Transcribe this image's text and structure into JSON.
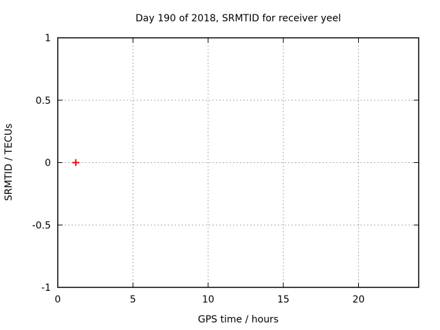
{
  "chart_data": {
    "type": "scatter",
    "title": "Day 190 of 2018, SRMTID for receiver yeel",
    "xlabel": "GPS time / hours",
    "ylabel": "SRMTID / TECUs",
    "xlim": [
      0,
      24
    ],
    "ylim": [
      -1,
      1
    ],
    "xticks": [
      0,
      5,
      10,
      15,
      20
    ],
    "yticks": [
      -1,
      -0.5,
      0,
      0.5,
      1
    ],
    "grid": "dashed",
    "legend": "none",
    "series": [
      {
        "name": "SRMTID",
        "marker": "plus",
        "color": "#ff0000",
        "points": [
          {
            "x": 1.2,
            "y": 0
          }
        ]
      }
    ]
  },
  "colors": {
    "background": "#ffffff",
    "border": "#000000",
    "grid": "#a8a8a8",
    "text": "#000000"
  }
}
